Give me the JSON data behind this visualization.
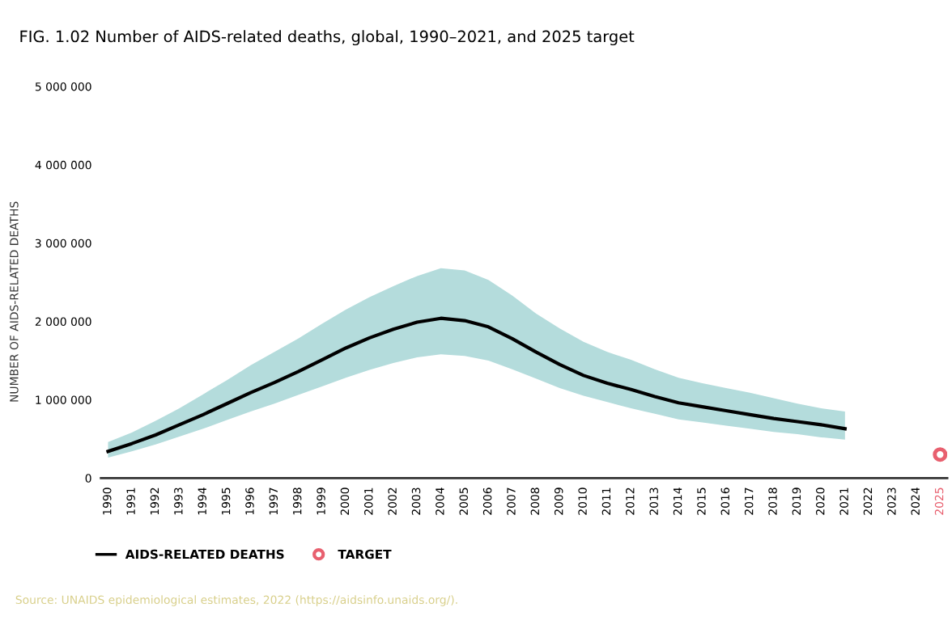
{
  "chart_data": {
    "type": "line",
    "title": "FIG. 1.02 Number of AIDS-related deaths, global, 1990–2021, and 2025 target",
    "ylabel": "NUMBER OF AIDS-RELATED DEATHS",
    "categories": [
      "1990",
      "1991",
      "1992",
      "1993",
      "1994",
      "1995",
      "1996",
      "1997",
      "1998",
      "1999",
      "2000",
      "2001",
      "2002",
      "2003",
      "2004",
      "2005",
      "2006",
      "2007",
      "2008",
      "2009",
      "2010",
      "2011",
      "2012",
      "2013",
      "2014",
      "2015",
      "2016",
      "2017",
      "2018",
      "2019",
      "2020",
      "2021",
      "2022",
      "2023",
      "2024",
      "2025"
    ],
    "series": [
      {
        "name": "AIDS-RELATED DEATHS",
        "color": "#000000",
        "values": [
          340000,
          440000,
          550000,
          680000,
          810000,
          950000,
          1090000,
          1220000,
          1360000,
          1510000,
          1660000,
          1790000,
          1900000,
          1990000,
          2040000,
          2010000,
          1930000,
          1780000,
          1610000,
          1450000,
          1310000,
          1210000,
          1130000,
          1040000,
          960000,
          910000,
          860000,
          810000,
          760000,
          720000,
          680000,
          630000,
          null,
          null,
          null,
          null
        ],
        "upper": [
          460000,
          580000,
          730000,
          890000,
          1070000,
          1250000,
          1440000,
          1610000,
          1780000,
          1970000,
          2150000,
          2310000,
          2450000,
          2580000,
          2680000,
          2650000,
          2530000,
          2330000,
          2100000,
          1910000,
          1740000,
          1610000,
          1510000,
          1390000,
          1280000,
          1210000,
          1150000,
          1090000,
          1020000,
          950000,
          890000,
          850000,
          null,
          null,
          null,
          null
        ],
        "lower": [
          260000,
          340000,
          430000,
          530000,
          630000,
          740000,
          850000,
          950000,
          1060000,
          1170000,
          1280000,
          1380000,
          1470000,
          1540000,
          1580000,
          1560000,
          1500000,
          1390000,
          1270000,
          1150000,
          1050000,
          970000,
          890000,
          820000,
          750000,
          710000,
          670000,
          630000,
          590000,
          560000,
          520000,
          490000,
          null,
          null,
          null,
          null
        ],
        "marker": "none",
        "line_style": "solid"
      },
      {
        "name": "TARGET",
        "type": "scatter",
        "color": "#e8606f",
        "marker": "circle",
        "values": [
          null,
          null,
          null,
          null,
          null,
          null,
          null,
          null,
          null,
          null,
          null,
          null,
          null,
          null,
          null,
          null,
          null,
          null,
          null,
          null,
          null,
          null,
          null,
          null,
          null,
          null,
          null,
          null,
          null,
          null,
          null,
          null,
          null,
          null,
          null,
          300000
        ]
      }
    ],
    "ylim": [
      0,
      5000000
    ],
    "yticks": [
      {
        "value": 0,
        "label": "0"
      },
      {
        "value": 1000000,
        "label": "1 000 000"
      },
      {
        "value": 2000000,
        "label": "2 000 000"
      },
      {
        "value": 3000000,
        "label": "3 000 000"
      },
      {
        "value": 4000000,
        "label": "4 000 000"
      },
      {
        "value": 5000000,
        "label": "5 000 000"
      }
    ],
    "grid": false,
    "legend": "bottom",
    "annotations": [
      "Source: UNAIDS epidemiological estimates, 2022 (https://aidsinfo.unaids.org/)."
    ]
  }
}
